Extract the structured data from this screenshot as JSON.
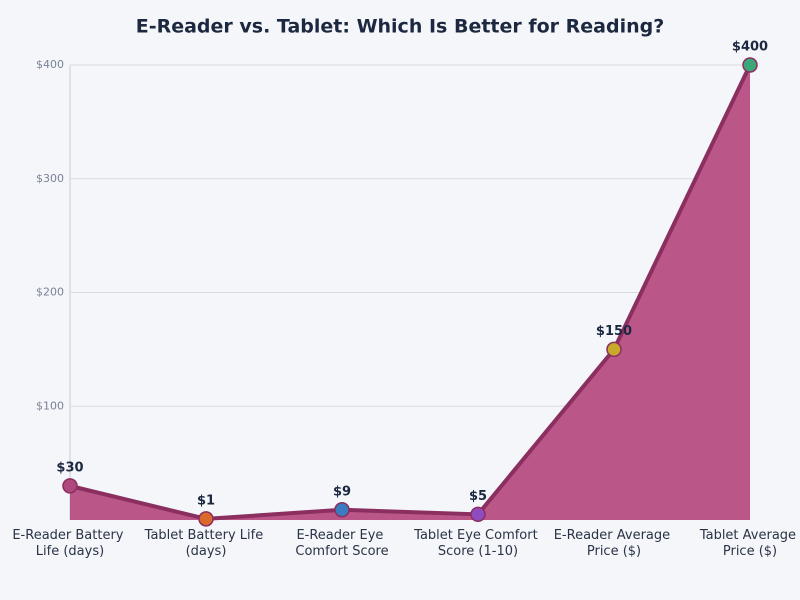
{
  "chart_data": {
    "type": "area",
    "title": "E-Reader vs. Tablet: Which Is Better for Reading?",
    "categories": [
      "E-Reader Battery Life (days)",
      "Tablet Battery Life (days)",
      "E-Reader Eye Comfort Score",
      "Tablet Eye Comfort Score (1-10)",
      "E-Reader Average Price ($)",
      "Tablet Average Price ($)"
    ],
    "values": [
      30,
      1,
      9,
      5,
      150,
      400
    ],
    "value_labels": [
      "$30",
      "$1",
      "$9",
      "$5",
      "$150",
      "$400"
    ],
    "line_color": "#8a2f5f",
    "area_color": "#b5457c",
    "point_colors": [
      "#b0487e",
      "#d96a2b",
      "#3b7bc0",
      "#8f4cbf",
      "#c9a92b",
      "#3ca87a"
    ],
    "ylim": [
      0,
      400
    ],
    "yticks": [
      {
        "value": 100,
        "label": "$100"
      },
      {
        "value": 200,
        "label": "$200"
      },
      {
        "value": 300,
        "label": "$300"
      },
      {
        "value": 400,
        "label": "$400"
      }
    ],
    "grid": true
  }
}
